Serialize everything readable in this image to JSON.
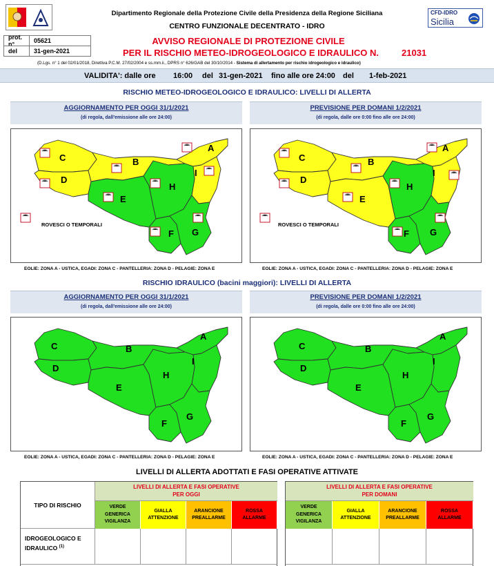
{
  "header": {
    "line1": "Dipartimento Regionale della Protezione Civile della Presidenza della Regione Siciliana",
    "line2": "CENTRO FUNZIONALE DECENTRATO - IDRO",
    "logo_right_top": "CFD-IDRO",
    "logo_right_bottom": "Sicilia"
  },
  "prot": {
    "label_prot": "prot. n°",
    "value_prot": "05621",
    "label_del": "del",
    "value_del": "31-gen-2021"
  },
  "avviso": {
    "title1": "AVVISO REGIONALE DI PROTEZIONE CIVILE",
    "title2": "PER IL RISCHIO METEO-IDROGEOLOGICO E IDRAULICO N.",
    "number": "21031",
    "legal_plain": "(D.Lgs. n° 1 del 02/01/2018, Direttiva P.C.M. 27/02/2004 e ss.mm.ii., DPRS n° 626/GAB del 30/10/2014 - ",
    "legal_bold": "Sistema di allertamento per rischio idrogeologico e idraulico)"
  },
  "validita": {
    "label": "VALIDITA': dalle ore",
    "start_time": "16:00",
    "del1": "del",
    "start_date": "31-gen-2021",
    "fino": "fino alle ore 24:00",
    "del2": "del",
    "end_date": "1-feb-2021"
  },
  "section_meteo": "RISCHIO METEO-IDROGEOLOGICO E IDRAULICO: LIVELLI DI ALLERTA",
  "section_idraulico": "RISCHIO IDRAULICO (bacini maggiori): LIVELLI DI ALLERTA",
  "panels": {
    "oggi_title": "AGGIORNAMENTO PER OGGI 31/1/2021",
    "oggi_sub": "(di regola, dall'emissione alle ore 24:00)",
    "domani_title": "PREVISIONE PER DOMANI 1/2/2021",
    "domani_sub": "(di regola, dalle ore 0:00 fino alle ore 24:00)"
  },
  "zones": {
    "A": "A",
    "B": "B",
    "C": "C",
    "D": "D",
    "E": "E",
    "F": "F",
    "G": "G",
    "H": "H",
    "I": "I"
  },
  "rovesci_label": "ROVESCI O TEMPORALI",
  "islands_note": "EOLIE: ZONA A - USTICA, EGADI: ZONA C - PANTELLERIA: ZONA D - PELAGIE: ZONA E",
  "colors": {
    "green": "#20e020",
    "yellow": "#ffff1e",
    "orange": "#ff9f00",
    "red": "#ff1a1a",
    "lightgreen": "#92d050",
    "gold": "#ffc000",
    "navy": "#1b2f78",
    "alert_red": "#e3001b"
  },
  "levels_table": {
    "title": "LIVELLI DI ALLERTA ADOTTATI E FASI OPERATIVE ATTIVATE",
    "tipo_label": "TIPO DI RISCHIO",
    "oggi_head1": "LIVELLI DI ALLERTA E FASI OPERATIVE",
    "oggi_head2": "PER OGGI",
    "domani_head1": "LIVELLI DI ALLERTA E FASI OPERATIVE",
    "domani_head2": "PER DOMANI",
    "levels": [
      {
        "name": "VERDE",
        "phase": "GENERICA VIGILANZA"
      },
      {
        "name": "GIALLA",
        "phase": "ATTENZIONE"
      },
      {
        "name": "ARANCIONE",
        "phase": "PREALLARME"
      },
      {
        "name": "ROSSA",
        "phase": "ALLARME"
      }
    ],
    "row1_label": "IDROGEOLOGICO E IDRAULICO",
    "row1_sup": "(1)"
  }
}
